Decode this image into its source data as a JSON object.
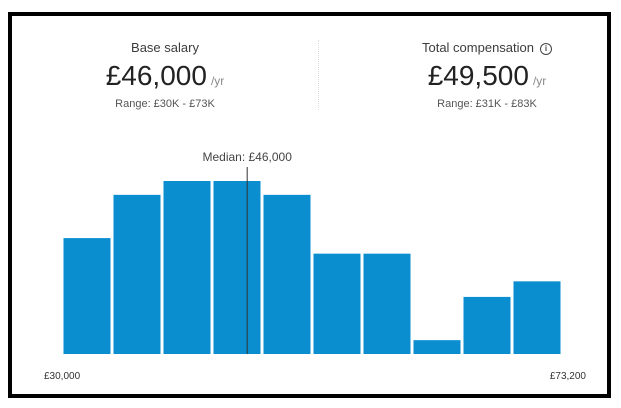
{
  "base_salary": {
    "label": "Base salary",
    "amount": "£46,000",
    "unit": "/yr",
    "range": "Range: £30K - £73K"
  },
  "total_compensation": {
    "label": "Total compensation",
    "amount": "£49,500",
    "unit": "/yr",
    "range": "Range: £31K - £83K",
    "icon": "info-icon"
  },
  "colors": {
    "bar": "#0a8ed0",
    "median_line": "#333333"
  },
  "chart_data": {
    "type": "bar",
    "xlim": [
      30000,
      73200
    ],
    "x_tick_labels": [
      "£30,000",
      "£73,200"
    ],
    "bins": 10,
    "relative_heights": [
      0.67,
      0.92,
      1.0,
      1.0,
      0.92,
      0.58,
      0.58,
      0.08,
      0.33,
      0.42
    ],
    "median": 46000,
    "median_label": "Median: £46,000"
  }
}
